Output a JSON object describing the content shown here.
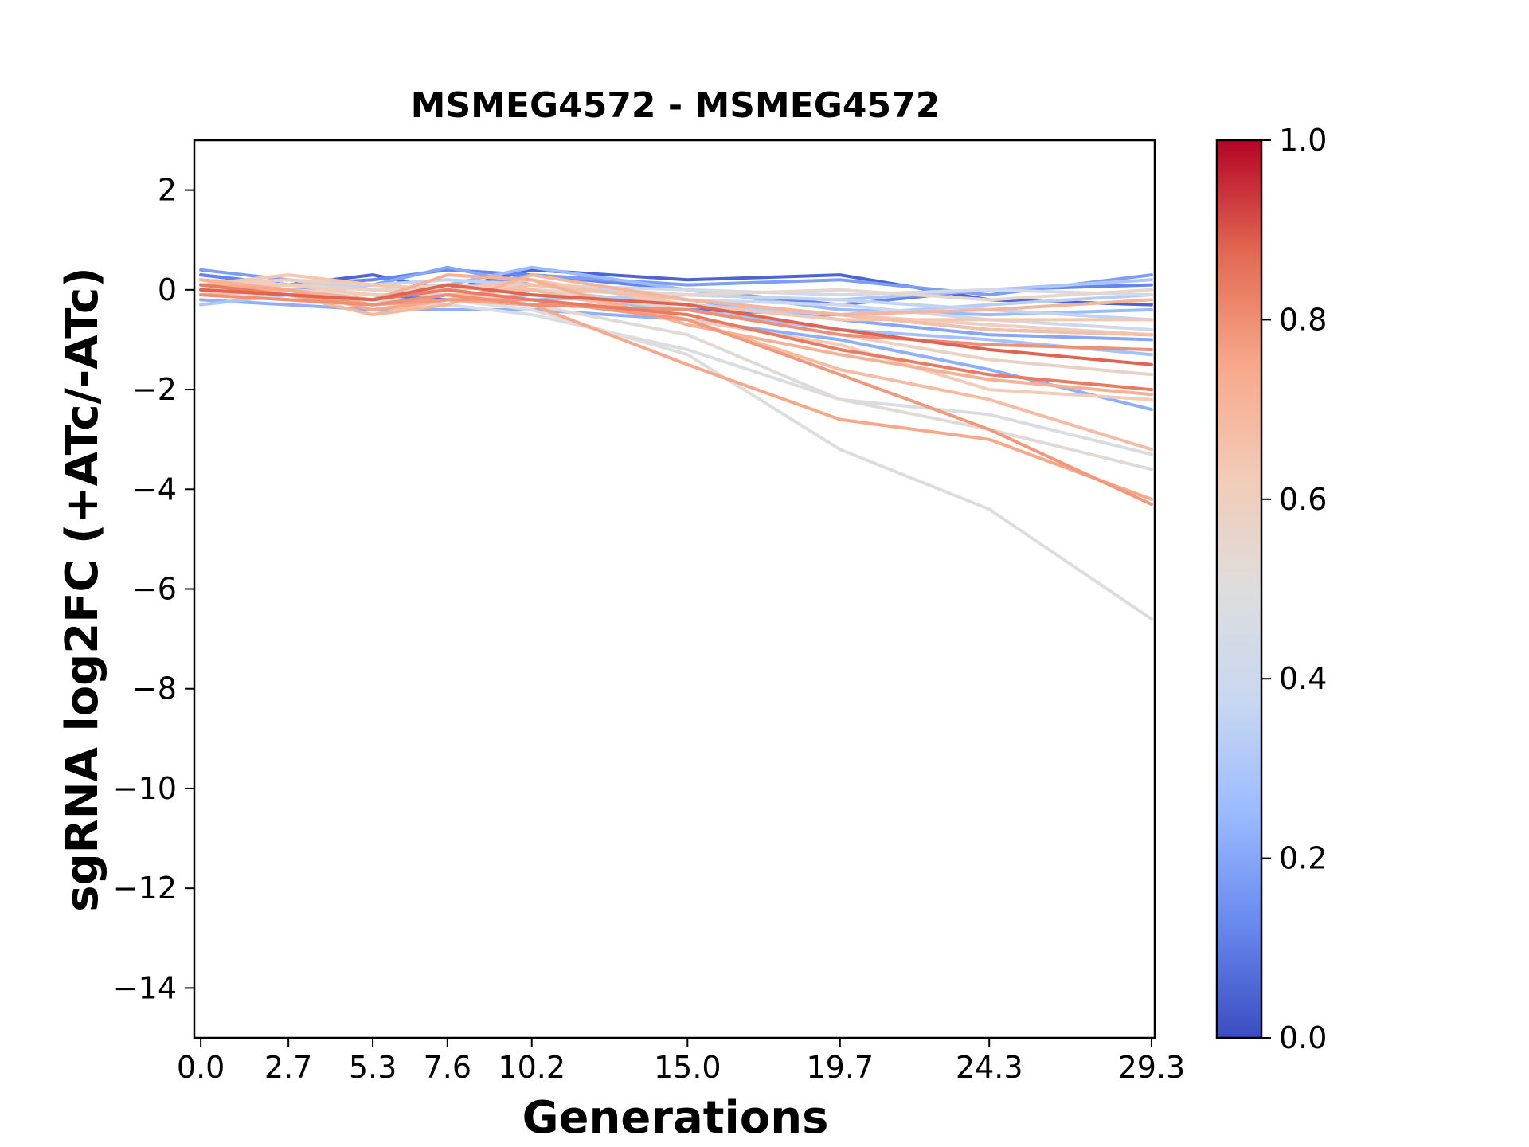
{
  "chart_data": {
    "type": "line",
    "title": "MSMEG4572 - MSMEG4572",
    "xlabel": "Generations",
    "ylabel": "sgRNA log2FC (+ATc/-ATc)",
    "x": [
      0.0,
      2.7,
      5.3,
      7.6,
      10.2,
      15.0,
      19.7,
      24.3,
      29.3
    ],
    "x_tick_labels": [
      "0.0",
      "2.7",
      "5.3",
      "7.6",
      "10.2",
      "15.0",
      "19.7",
      "24.3",
      "29.3"
    ],
    "xlim": [
      -0.2,
      29.4
    ],
    "ylim": [
      -15,
      3
    ],
    "y_ticks": [
      2,
      0,
      -2,
      -4,
      -6,
      -8,
      -10,
      -12,
      -14
    ],
    "y_tick_labels": [
      "2",
      "0",
      "−2",
      "−4",
      "−6",
      "−8",
      "−10",
      "−12",
      "−14"
    ],
    "grid": false,
    "colorbar": {
      "colormap": "coolwarm",
      "range": [
        0.0,
        1.0
      ],
      "ticks": [
        0.0,
        0.2,
        0.4,
        0.6,
        0.8,
        1.0
      ],
      "tick_labels": [
        "0.0",
        "0.2",
        "0.4",
        "0.6",
        "0.8",
        "1.0"
      ],
      "stops": [
        "#3b4cc0",
        "#6788ee",
        "#9abbff",
        "#c9d7f0",
        "#dddddd",
        "#f2cbb7",
        "#f7a889",
        "#e26952",
        "#b40426"
      ]
    },
    "series": [
      {
        "c": 0.05,
        "values": [
          0.3,
          0.1,
          0.3,
          0.0,
          0.4,
          0.2,
          0.3,
          -0.2,
          -0.3
        ]
      },
      {
        "c": 0.08,
        "values": [
          0.2,
          0.0,
          -0.1,
          -0.2,
          -0.3,
          -0.4,
          -0.5,
          -0.8,
          -0.9
        ]
      },
      {
        "c": 0.12,
        "values": [
          0.3,
          0.1,
          0.2,
          0.4,
          0.3,
          0.0,
          -0.3,
          0.0,
          0.1
        ]
      },
      {
        "c": 0.18,
        "values": [
          0.4,
          0.2,
          0.0,
          0.0,
          0.3,
          0.1,
          0.2,
          -0.1,
          0.3
        ]
      },
      {
        "c": 0.2,
        "values": [
          0.1,
          0.0,
          0.1,
          0.45,
          0.1,
          -0.2,
          -0.6,
          -0.9,
          -1.0
        ]
      },
      {
        "c": 0.22,
        "values": [
          -0.2,
          -0.3,
          -0.4,
          -0.4,
          -0.4,
          -0.6,
          -1.0,
          -1.6,
          -2.4
        ]
      },
      {
        "c": 0.25,
        "values": [
          0.2,
          0.1,
          0.0,
          0.1,
          0.45,
          0.0,
          -0.4,
          -0.5,
          -0.4
        ]
      },
      {
        "c": 0.28,
        "values": [
          0.0,
          -0.2,
          -0.3,
          -0.2,
          -0.1,
          -0.4,
          -0.8,
          -1.0,
          -1.3
        ]
      },
      {
        "c": 0.3,
        "values": [
          -0.3,
          -0.1,
          0.1,
          0.0,
          -0.2,
          -0.1,
          -0.2,
          0.0,
          0.2
        ]
      },
      {
        "c": 0.33,
        "values": [
          0.1,
          0.2,
          0.0,
          0.1,
          0.0,
          -0.3,
          -0.5,
          -0.3,
          -0.1
        ]
      },
      {
        "c": 0.36,
        "values": [
          0.0,
          0.1,
          0.1,
          0.2,
          0.1,
          -0.1,
          -0.2,
          -0.4,
          -0.6
        ]
      },
      {
        "c": 0.4,
        "values": [
          0.2,
          0.0,
          -0.2,
          0.0,
          0.1,
          -0.2,
          -0.3,
          -0.6,
          -0.8
        ]
      },
      {
        "c": 0.44,
        "values": [
          0.1,
          0.1,
          0.0,
          0.0,
          0.1,
          0.0,
          -0.1,
          0.0,
          -0.1
        ]
      },
      {
        "c": 0.48,
        "values": [
          0.0,
          -0.1,
          -0.2,
          -0.3,
          -0.5,
          -1.2,
          -2.2,
          -2.5,
          -3.3
        ]
      },
      {
        "c": 0.5,
        "values": [
          0.0,
          -0.2,
          -0.3,
          -0.2,
          -0.4,
          -1.3,
          -3.2,
          -4.4,
          -6.6
        ]
      },
      {
        "c": 0.52,
        "values": [
          0.1,
          0.0,
          -0.1,
          -0.1,
          -0.3,
          -0.9,
          -2.2,
          -2.8,
          -3.6
        ]
      },
      {
        "c": 0.55,
        "values": [
          0.0,
          0.1,
          0.0,
          0.1,
          0.0,
          -0.1,
          0.0,
          -0.2,
          0.0
        ]
      },
      {
        "c": 0.58,
        "values": [
          0.2,
          0.1,
          0.0,
          -0.1,
          0.0,
          -0.4,
          -0.9,
          -1.4,
          -1.7
        ]
      },
      {
        "c": 0.6,
        "values": [
          0.1,
          0.2,
          0.1,
          0.0,
          0.1,
          -0.2,
          -0.5,
          -0.7,
          -0.9
        ]
      },
      {
        "c": 0.62,
        "values": [
          0.0,
          0.1,
          -0.1,
          -0.1,
          -0.2,
          -0.6,
          -1.1,
          -2.0,
          -2.2
        ]
      },
      {
        "c": 0.64,
        "values": [
          0.1,
          0.3,
          0.1,
          0.0,
          0.2,
          -0.3,
          -0.6,
          -0.6,
          -0.6
        ]
      },
      {
        "c": 0.66,
        "values": [
          0.0,
          -0.1,
          -0.5,
          -0.2,
          0.1,
          -0.2,
          -0.5,
          -0.8,
          -0.9
        ]
      },
      {
        "c": 0.68,
        "values": [
          -0.1,
          0.0,
          -0.3,
          -0.1,
          0.0,
          -0.6,
          -1.6,
          -2.2,
          -3.2
        ]
      },
      {
        "c": 0.7,
        "values": [
          0.0,
          -0.1,
          -0.5,
          -0.3,
          0.3,
          -0.2,
          -0.5,
          -0.4,
          -0.2
        ]
      },
      {
        "c": 0.72,
        "values": [
          0.2,
          0.0,
          -0.2,
          0.3,
          0.2,
          -0.7,
          -1.3,
          -1.8,
          -2.1
        ]
      },
      {
        "c": 0.75,
        "values": [
          0.1,
          0.0,
          -0.4,
          -0.2,
          -0.3,
          -1.5,
          -2.6,
          -3.0,
          -4.2
        ]
      },
      {
        "c": 0.78,
        "values": [
          0.0,
          -0.1,
          -0.3,
          -0.2,
          -0.2,
          -0.6,
          -1.7,
          -2.8,
          -4.3
        ]
      },
      {
        "c": 0.8,
        "values": [
          -0.1,
          -0.2,
          -0.3,
          -0.1,
          -0.3,
          -0.4,
          -0.9,
          -1.1,
          -1.2
        ]
      },
      {
        "c": 0.84,
        "values": [
          0.1,
          -0.1,
          -0.2,
          0.0,
          -0.2,
          -0.5,
          -1.2,
          -1.7,
          -2.0
        ]
      },
      {
        "c": 0.88,
        "values": [
          0.0,
          -0.1,
          -0.2,
          0.1,
          -0.1,
          -0.3,
          -0.8,
          -1.2,
          -1.5
        ]
      }
    ]
  }
}
